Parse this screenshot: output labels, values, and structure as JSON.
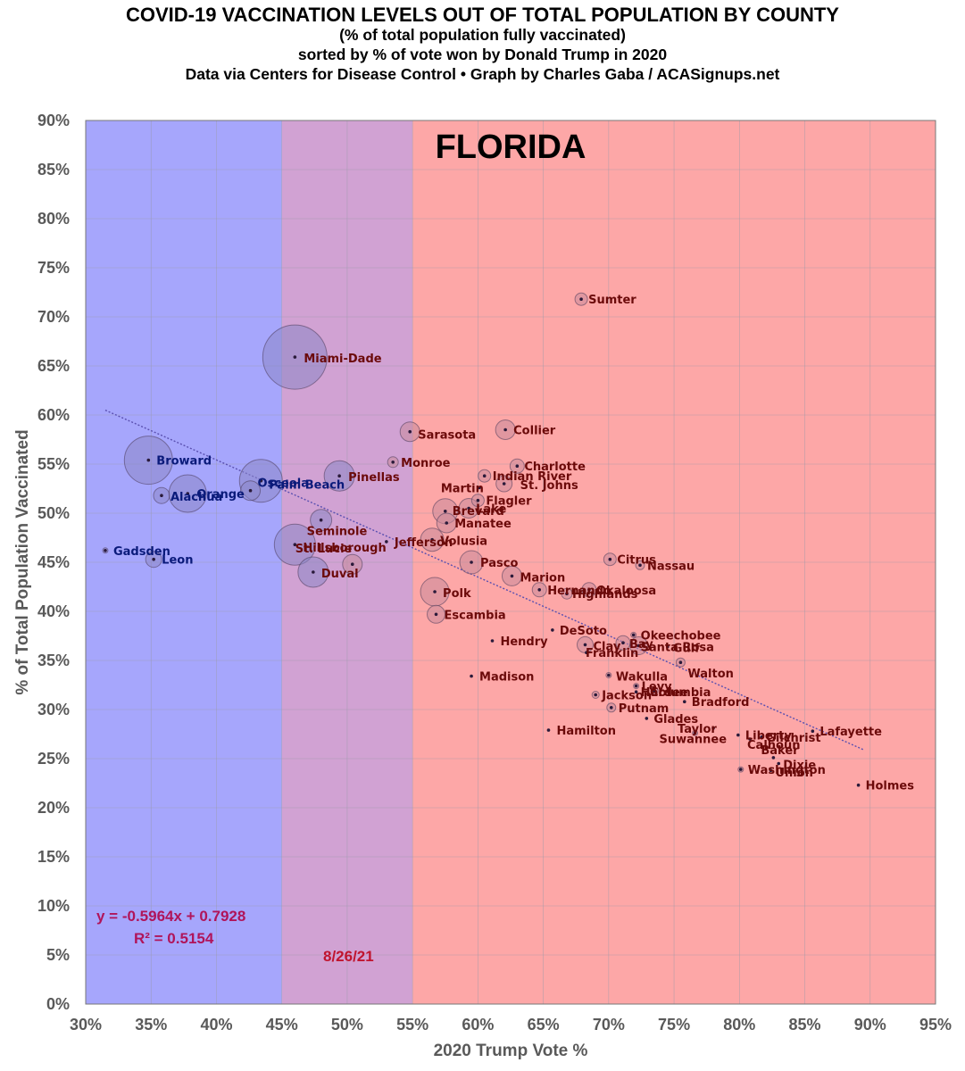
{
  "titles": {
    "line1": "COVID-19 VACCINATION LEVELS OUT OF TOTAL POPULATION BY COUNTY",
    "line2": "(% of total population fully vaccinated)",
    "line3": "sorted by % of vote won by Donald Trump in 2020",
    "line4": "Data via Centers for Disease Control • Graph by Charles Gaba / ACASignups.net"
  },
  "chart_data": {
    "type": "scatter",
    "state_label": "FLORIDA",
    "xlabel": "2020 Trump Vote %",
    "ylabel": "% of Total Population Vaccinated",
    "xlim": [
      30,
      95
    ],
    "ylim": [
      0,
      90
    ],
    "x_ticks": [
      "30%",
      "35%",
      "40%",
      "45%",
      "50%",
      "55%",
      "60%",
      "65%",
      "70%",
      "75%",
      "80%",
      "85%",
      "90%",
      "95%"
    ],
    "y_ticks": [
      "0%",
      "5%",
      "10%",
      "15%",
      "20%",
      "25%",
      "30%",
      "35%",
      "40%",
      "45%",
      "50%",
      "55%",
      "60%",
      "65%",
      "70%",
      "75%",
      "80%",
      "85%",
      "90%"
    ],
    "grid": true,
    "bands": [
      {
        "from": 30,
        "to": 45,
        "color": "#a6a6fc"
      },
      {
        "from": 45,
        "to": 55,
        "color": "#d1a2d3"
      },
      {
        "from": 55,
        "to": 95,
        "color": "#fda7a7"
      }
    ],
    "colors": {
      "dem_label": "#0a1a7a",
      "rep_label": "#6b0a0a",
      "dot": "#2a1a3a",
      "trend": "#5a50b0"
    },
    "trendline": {
      "slope": -0.5964,
      "intercept": 0.7928,
      "x_from": 31.5,
      "x_to": 89.5
    },
    "equation": "y = -0.5964x + 0.7928",
    "r_squared": "R² = 0.5154",
    "date": "8/26/21",
    "points": [
      {
        "name": "Gadsden",
        "x": 31.5,
        "y": 46.2,
        "r": 3
      },
      {
        "name": "Broward",
        "x": 34.8,
        "y": 55.4,
        "r": 27
      },
      {
        "name": "Leon",
        "x": 35.2,
        "y": 45.3,
        "r": 9
      },
      {
        "name": "Alachua",
        "x": 35.8,
        "y": 51.8,
        "r": 9
      },
      {
        "name": "Orange",
        "x": 37.8,
        "y": 52.0,
        "r": 21
      },
      {
        "name": "Palm Beach",
        "x": 43.4,
        "y": 53.3,
        "r": 24
      },
      {
        "name": "Osceola",
        "x": 42.6,
        "y": 52.3,
        "r": 11
      },
      {
        "name": "Miami-Dade",
        "x": 46.0,
        "y": 65.9,
        "r": 36
      },
      {
        "name": "Hillsborough",
        "x": 46.0,
        "y": 46.8,
        "r": 23
      },
      {
        "name": "Seminole",
        "x": 48.0,
        "y": 49.3,
        "r": 12
      },
      {
        "name": "Duval",
        "x": 47.4,
        "y": 44.0,
        "r": 17
      },
      {
        "name": "Pinellas",
        "x": 49.4,
        "y": 53.8,
        "r": 17
      },
      {
        "name": "St. Lucie",
        "x": 50.4,
        "y": 44.8,
        "r": 11
      },
      {
        "name": "Jefferson",
        "x": 53.0,
        "y": 47.1,
        "r": 2
      },
      {
        "name": "Monroe",
        "x": 53.5,
        "y": 55.2,
        "r": 6
      },
      {
        "name": "Sarasota",
        "x": 54.8,
        "y": 58.3,
        "r": 11
      },
      {
        "name": "Volusia",
        "x": 56.5,
        "y": 47.3,
        "r": 13
      },
      {
        "name": "Polk",
        "x": 56.7,
        "y": 42.0,
        "r": 16
      },
      {
        "name": "Escambia",
        "x": 56.8,
        "y": 39.7,
        "r": 10
      },
      {
        "name": "Brevard",
        "x": 57.5,
        "y": 50.2,
        "r": 14
      },
      {
        "name": "Manatee",
        "x": 57.6,
        "y": 49.0,
        "r": 11
      },
      {
        "name": "Pasco",
        "x": 59.5,
        "y": 45.0,
        "r": 13
      },
      {
        "name": "Lake",
        "x": 59.3,
        "y": 50.5,
        "r": 11
      },
      {
        "name": "Madison",
        "x": 59.5,
        "y": 33.4,
        "r": 2
      },
      {
        "name": "Flagler",
        "x": 60.0,
        "y": 51.3,
        "r": 7
      },
      {
        "name": "Martin",
        "x": 60.1,
        "y": 52.6,
        "r": 1
      },
      {
        "name": "Indian River",
        "x": 60.5,
        "y": 53.8,
        "r": 7
      },
      {
        "name": "Hendry",
        "x": 61.1,
        "y": 37.0,
        "r": 2
      },
      {
        "name": "St. Johns",
        "x": 62.0,
        "y": 53.0,
        "r": 9
      },
      {
        "name": "Collier",
        "x": 62.1,
        "y": 58.5,
        "r": 11
      },
      {
        "name": "Marion",
        "x": 62.6,
        "y": 43.6,
        "r": 11
      },
      {
        "name": "Charlotte",
        "x": 63.0,
        "y": 54.8,
        "r": 8
      },
      {
        "name": "Hernando",
        "x": 64.7,
        "y": 42.2,
        "r": 8
      },
      {
        "name": "Hamilton",
        "x": 65.4,
        "y": 27.9,
        "r": 2
      },
      {
        "name": "DeSoto",
        "x": 65.7,
        "y": 38.1,
        "r": 2
      },
      {
        "name": "Highlands",
        "x": 66.8,
        "y": 41.8,
        "r": 6
      },
      {
        "name": "Sumter",
        "x": 67.9,
        "y": 71.8,
        "r": 7
      },
      {
        "name": "Clay",
        "x": 68.2,
        "y": 36.6,
        "r": 9
      },
      {
        "name": "Franklin",
        "x": 68.3,
        "y": 35.8,
        "r": 2
      },
      {
        "name": "Okaloosa",
        "x": 68.5,
        "y": 42.2,
        "r": 8
      },
      {
        "name": "Jackson",
        "x": 69.0,
        "y": 31.5,
        "r": 4
      },
      {
        "name": "Wakulla",
        "x": 70.0,
        "y": 33.5,
        "r": 3
      },
      {
        "name": "Citrus",
        "x": 70.1,
        "y": 45.3,
        "r": 7
      },
      {
        "name": "Putnam",
        "x": 70.2,
        "y": 30.2,
        "r": 5
      },
      {
        "name": "Bay",
        "x": 71.1,
        "y": 36.8,
        "r": 8
      },
      {
        "name": "Okeechobee",
        "x": 71.9,
        "y": 37.6,
        "r": 3
      },
      {
        "name": "Levy",
        "x": 72.1,
        "y": 32.4,
        "r": 3
      },
      {
        "name": "Hardee",
        "x": 72.1,
        "y": 31.8,
        "r": 2
      },
      {
        "name": "Santa Rosa",
        "x": 72.3,
        "y": 36.5,
        "r": 10
      },
      {
        "name": "Nassau",
        "x": 72.4,
        "y": 44.7,
        "r": 5
      },
      {
        "name": "Glades",
        "x": 72.9,
        "y": 29.1,
        "r": 2
      },
      {
        "name": "Columbia",
        "x": 73.5,
        "y": 31.9,
        "r": 4
      },
      {
        "name": "Gulf",
        "x": 74.5,
        "y": 36.4,
        "r": 2
      },
      {
        "name": "Walton",
        "x": 75.5,
        "y": 34.8,
        "r": 5
      },
      {
        "name": "Bradford",
        "x": 75.8,
        "y": 30.8,
        "r": 2
      },
      {
        "name": "Suwannee",
        "x": 76.6,
        "y": 27.6,
        "r": 3
      },
      {
        "name": "Taylor",
        "x": 78.0,
        "y": 28.1,
        "r": 2
      },
      {
        "name": "Liberty",
        "x": 79.9,
        "y": 27.4,
        "r": 2
      },
      {
        "name": "Washington",
        "x": 80.1,
        "y": 23.9,
        "r": 3
      },
      {
        "name": "Calhoun",
        "x": 80.8,
        "y": 27.0,
        "r": 2
      },
      {
        "name": "Gilchrist",
        "x": 81.7,
        "y": 27.2,
        "r": 2
      },
      {
        "name": "Union",
        "x": 82.4,
        "y": 23.8,
        "r": 2
      },
      {
        "name": "Baker",
        "x": 82.6,
        "y": 25.1,
        "r": 2
      },
      {
        "name": "Dixie",
        "x": 83.0,
        "y": 24.5,
        "r": 2
      },
      {
        "name": "Lafayette",
        "x": 85.6,
        "y": 27.8,
        "r": 2
      },
      {
        "name": "Holmes",
        "x": 89.1,
        "y": 22.3,
        "r": 2
      }
    ]
  }
}
